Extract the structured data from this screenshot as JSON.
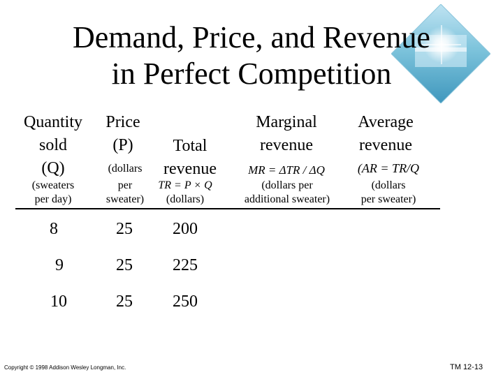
{
  "title": {
    "line1": "Demand, Price, and Revenue",
    "line2": "in Perfect Competition"
  },
  "columns": {
    "quantity": {
      "line1": "Quantity",
      "line2": "sold",
      "line3": "(Q)",
      "sub1": "(sweaters",
      "sub2": "per day)"
    },
    "price": {
      "line1": "Price",
      "line2": "(P)",
      "sub1": "(dollars",
      "sub2": "per",
      "sub3": "sweater)"
    },
    "total_revenue": {
      "line1": "Total",
      "line2": "revenue",
      "formula": "TR = P × Q",
      "unit": "(dollars)"
    },
    "marginal_revenue": {
      "line1": "Marginal",
      "line2": "revenue",
      "formula": "MR = ΔTR / ΔQ",
      "sub1": "(dollars per",
      "sub2": "additional sweater)"
    },
    "average_revenue": {
      "line1": "Average",
      "line2": "revenue",
      "formula": "(AR = TR/Q",
      "sub1": "(dollars",
      "sub2": "per sweater)"
    }
  },
  "rows": [
    {
      "quantity": "8",
      "price": "25",
      "total_revenue": "200"
    },
    {
      "quantity": "9",
      "price": "25",
      "total_revenue": "225"
    },
    {
      "quantity": "10",
      "price": "25",
      "total_revenue": "250"
    }
  ],
  "footer": {
    "copyright": "Copyright © 1998 Addison Wesley Longman, Inc.",
    "slide_id": "TM 12-13"
  }
}
